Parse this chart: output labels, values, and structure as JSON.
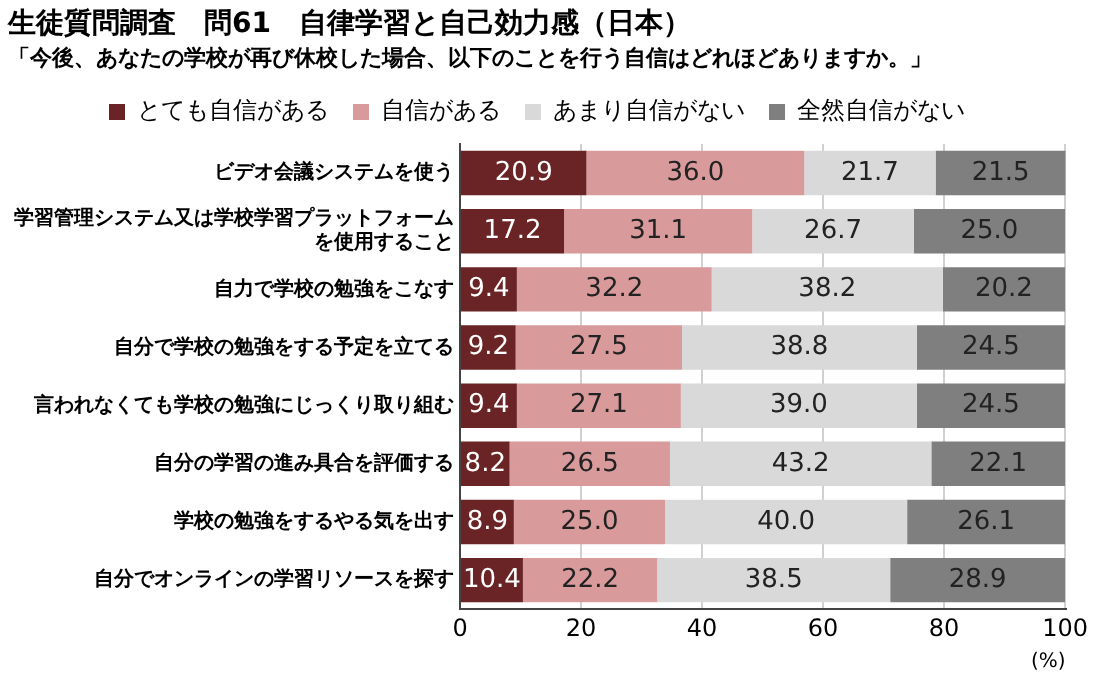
{
  "chart_data": {
    "type": "bar",
    "orientation": "horizontal",
    "stacked": true,
    "title": "生徒質問調査　問61　自律学習と自己効力感（日本）",
    "subtitle": "「今後、あなたの学校が再び休校した場合、以下のことを行う自信はどれほどありますか。」",
    "xlabel": "(%)",
    "categories": [
      "ビデオ会議システムを使う",
      "学習管理システム又は学校学習プラットフォームを使用すること",
      "自力で学校の勉強をこなす",
      "自分で学校の勉強をする予定を立てる",
      "言われなくても学校の勉強にじっくり取り組む",
      "自分の学習の進み具合を評価する",
      "学校の勉強をするやる気を出す",
      "自分でオンラインの学習リソースを探す"
    ],
    "series": [
      {
        "name": "とても自信がある",
        "color": "#6b2426",
        "values": [
          20.9,
          17.2,
          9.4,
          9.2,
          9.4,
          8.2,
          8.9,
          10.4
        ],
        "value_labels": [
          "20.9",
          "17.2",
          "9.4",
          "9.2",
          "9.4",
          "8.2",
          "8.9",
          "10.4"
        ]
      },
      {
        "name": "自信がある",
        "color": "#d99a9b",
        "values": [
          36,
          31.1,
          32.2,
          27.5,
          27.1,
          26.5,
          25,
          22.2
        ],
        "value_labels": [
          "36.0",
          "31.1",
          "32.2",
          "27.5",
          "27.1",
          "26.5",
          "25.0",
          "22.2"
        ]
      },
      {
        "name": "あまり自信がない",
        "color": "#d9d9d9",
        "values": [
          21.7,
          26.7,
          38.2,
          38.8,
          39,
          43.2,
          40,
          38.5
        ],
        "value_labels": [
          "21.7",
          "26.7",
          "38.2",
          "38.8",
          "39.0",
          "43.2",
          "40.0",
          "38.5"
        ]
      },
      {
        "name": "全然自信がない",
        "color": "#7f7f7f",
        "values": [
          21.5,
          25,
          20.2,
          24.5,
          24.5,
          22.1,
          26.1,
          28.9
        ],
        "value_labels": [
          "21.5",
          "25.0",
          "20.2",
          "24.5",
          "24.5",
          "22.1",
          "26.1",
          "28.9"
        ]
      }
    ],
    "xlim": [
      0,
      100.1
    ],
    "xticks": [
      0,
      20,
      40,
      60,
      80,
      100
    ],
    "grid": "x",
    "legend": "top"
  }
}
